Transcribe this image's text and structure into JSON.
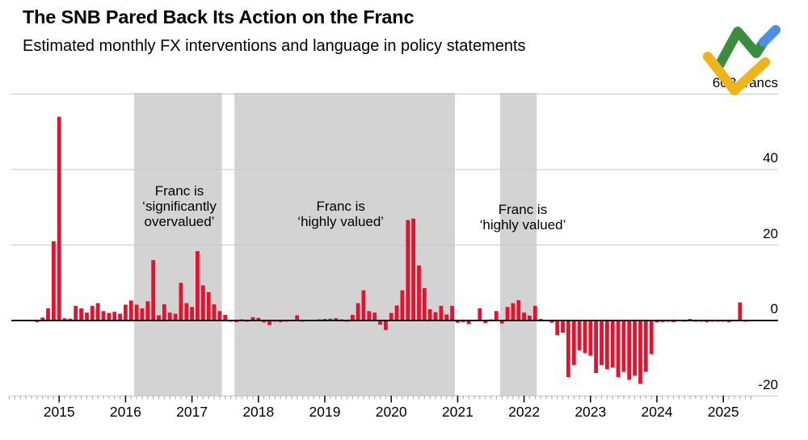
{
  "header": {
    "title": "The SNB Pared Back Its Action on the Franc",
    "subtitle": "Estimated monthly FX interventions and language in policy statements"
  },
  "chart_data": {
    "type": "bar",
    "title": "Estimated monthly FX interventions",
    "unit": "billions of francs per month",
    "bar_color": "#e8112d",
    "band_color": "#d3d3d3",
    "grid_color": "#c9c9c9",
    "axis_color": "#111111",
    "minor_tick_color": "#a9a9a9",
    "ylim": [
      -24,
      62
    ],
    "grid": true,
    "legend": "none",
    "yticks": [
      {
        "value": -20,
        "label": "-20"
      },
      {
        "value": 0,
        "label": "0"
      },
      {
        "value": 20,
        "label": "20"
      },
      {
        "value": 40,
        "label": "40"
      },
      {
        "value": 60,
        "label": "60B francs"
      }
    ],
    "year_labels": [
      "2015",
      "2016",
      "2017",
      "2018",
      "2019",
      "2020",
      "2021",
      "2022",
      "2023",
      "2024",
      "2025"
    ],
    "series_start": "2014-04",
    "monthly_values": [
      0.0,
      0.0,
      0.1,
      0.2,
      0.2,
      -0.4,
      0.8,
      3.2,
      21.0,
      54.0,
      0.6,
      0.5,
      3.9,
      3.2,
      2.1,
      3.9,
      4.6,
      2.5,
      2.0,
      2.3,
      1.8,
      4.2,
      5.3,
      4.2,
      3.2,
      5.1,
      16.0,
      1.4,
      4.3,
      2.1,
      1.8,
      10.0,
      4.6,
      3.6,
      18.4,
      9.3,
      7.5,
      4.3,
      2.5,
      1.5,
      -0.3,
      -0.4,
      0.3,
      -0.3,
      0.9,
      0.7,
      -0.5,
      -1.2,
      -0.3,
      -0.4,
      -0.3,
      0.2,
      1.4,
      -0.3,
      -0.2,
      0.2,
      0.3,
      0.4,
      0.5,
      0.6,
      0.3,
      -0.3,
      1.5,
      4.6,
      8.0,
      2.5,
      2.1,
      -1.1,
      -2.5,
      2.0,
      4.0,
      8.0,
      26.6,
      27.0,
      14.6,
      8.6,
      3.0,
      2.2,
      3.9,
      1.6,
      3.9,
      -0.6,
      -0.4,
      -0.9,
      0.2,
      3.2,
      -0.7,
      0.3,
      2.5,
      -0.8,
      3.6,
      4.6,
      5.4,
      2.1,
      1.3,
      3.9,
      0.4,
      -0.2,
      -0.6,
      -3.9,
      -3.2,
      -15.0,
      -11.8,
      -7.9,
      -8.6,
      -9.3,
      -13.9,
      -11.8,
      -12.9,
      -12.5,
      -15.0,
      -13.6,
      -15.7,
      -14.6,
      -16.8,
      -13.6,
      -8.9,
      -0.5,
      -0.4,
      -0.3,
      -0.4,
      0.2,
      -0.3,
      0.4,
      -0.3,
      -0.3,
      -0.4,
      -0.3,
      -0.3,
      -0.3,
      -0.4,
      0.2,
      4.8,
      -0.3
    ],
    "language_periods": [
      {
        "label": "Franc is ‘significantly overvalued’",
        "label_lines": [
          "Franc is",
          "‘significantly",
          "overvalued’"
        ],
        "start_year": 2016.13,
        "end_year": 2017.45,
        "label_x_year": 2016.81,
        "label_y_value": 34.4
      },
      {
        "label": "Franc is ‘highly valued’",
        "label_lines": [
          "Franc is",
          "‘highly valued’"
        ],
        "start_year": 2017.64,
        "end_year": 2020.96,
        "label_x_year": 2019.24,
        "label_y_value": 30.2
      },
      {
        "label": "Franc is ‘highly valued’",
        "label_lines": [
          "Franc is",
          "‘highly valued’"
        ],
        "start_year": 2021.64,
        "end_year": 2022.19,
        "label_x_year": 2021.98,
        "label_y_value": 29.5
      }
    ]
  },
  "logo": {
    "name": "LiteFinance logo",
    "green": "#3a8c3f",
    "blue": "#4b8fe2",
    "yellow": "#f0b41b"
  }
}
